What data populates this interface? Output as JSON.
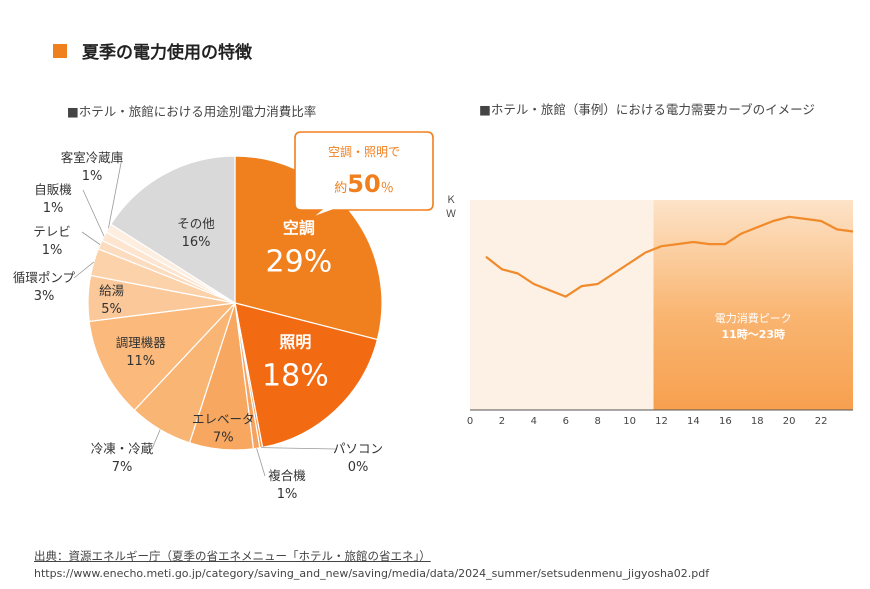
{
  "page": {
    "title": "夏季の電力使用の特徴",
    "accent_color": "#f07f1e"
  },
  "chart_data": [
    {
      "type": "pie",
      "title": "■ホテル・旅館における用途別電力消費比率",
      "slices": [
        {
          "label": "空調",
          "value": 29,
          "pct_text": "29%",
          "color": "#f07f1e"
        },
        {
          "label": "照明",
          "value": 18,
          "pct_text": "18%",
          "color": "#f26a11"
        },
        {
          "label": "パソコン",
          "value": 0.3,
          "pct_text": "0%",
          "color": "#f49a4e"
        },
        {
          "label": "複合機",
          "value": 0.7,
          "pct_text": "1%",
          "color": "#f5a361"
        },
        {
          "label": "エレベータ",
          "value": 7,
          "pct_text": "7%",
          "color": "#f7a75f"
        },
        {
          "label": "冷凍・冷蔵",
          "value": 7,
          "pct_text": "7%",
          "color": "#f9b574"
        },
        {
          "label": "調理機器",
          "value": 11,
          "pct_text": "11%",
          "color": "#fbb97c"
        },
        {
          "label": "給湯",
          "value": 5,
          "pct_text": "5%",
          "color": "#fbc89a"
        },
        {
          "label": "循環ポンプ",
          "value": 3,
          "pct_text": "3%",
          "color": "#fcd2ab"
        },
        {
          "label": "テレビ",
          "value": 1,
          "pct_text": "1%",
          "color": "#fcdcbf"
        },
        {
          "label": "自販機",
          "value": 1,
          "pct_text": "1%",
          "color": "#fde5d0"
        },
        {
          "label": "客室冷蔵庫",
          "value": 1,
          "pct_text": "1%",
          "color": "#fdeee0"
        },
        {
          "label": "その他",
          "value": 16,
          "pct_text": "16%",
          "color": "#d9d9d9"
        }
      ],
      "callout": {
        "line1": "空調・照明で",
        "prefix": "約",
        "value": "50",
        "suffix": "％"
      }
    },
    {
      "type": "line",
      "title": "■ホテル・旅館（事例）における電力需要カーブのイメージ",
      "ylabel": "ＫＷ",
      "x_ticks": [
        0,
        2,
        4,
        6,
        8,
        10,
        12,
        14,
        16,
        18,
        20,
        22
      ],
      "xlim": [
        0,
        24
      ],
      "ylim": [
        0,
        100
      ],
      "x": [
        1,
        2,
        3,
        4,
        5,
        6,
        7,
        8,
        9,
        10,
        11,
        12,
        13,
        14,
        15,
        16,
        17,
        18,
        19,
        20,
        21,
        22,
        23,
        24
      ],
      "values": [
        73,
        67,
        65,
        60,
        57,
        54,
        59,
        60,
        65,
        70,
        75,
        78,
        79,
        80,
        79,
        79,
        84,
        87,
        90,
        92,
        91,
        90,
        86,
        85
      ],
      "peak_band": {
        "start": 11,
        "end": 24,
        "line1": "電力消費ピーク",
        "line2": "11時～23時"
      },
      "line_color": "#f08a2a"
    }
  ],
  "source": {
    "line1": "出典：資源エネルギー庁（夏季の省エネメニュー「ホテル・旅館の省エネ」）",
    "url": "https://www.enecho.meti.go.jp/category/saving_and_new/saving/media/data/2024_summer/setsudenmenu_jigyosha02.pdf"
  }
}
